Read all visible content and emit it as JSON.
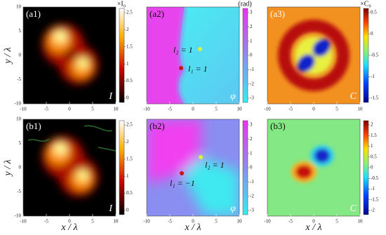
{
  "figure": {
    "axes": {
      "x_label": "x / λ",
      "y_label": "y / λ",
      "x_ticks": [
        -10,
        -5,
        0,
        5,
        10
      ],
      "y_ticks": [
        -10,
        -5,
        0,
        5,
        10
      ]
    },
    "panels": [
      {
        "label": "(a1)",
        "symbol": "I",
        "colorbar": {
          "title": "×I₀",
          "ticks": [
            0,
            0.5,
            1,
            1.5,
            2,
            2.5
          ]
        }
      },
      {
        "label": "(a2)",
        "symbol": "φ",
        "colorbar": {
          "title": "(rad)",
          "ticks": [
            -3,
            -2,
            -1,
            0,
            1,
            2,
            3
          ]
        },
        "annotations": [
          "l₂ = 1",
          "l₁ = 1"
        ]
      },
      {
        "label": "(a3)",
        "symbol": "C",
        "colorbar": {
          "title": "×C₀",
          "ticks": [
            -1.5,
            -1,
            -0.5,
            0,
            0.5
          ]
        }
      },
      {
        "label": "(b1)",
        "symbol": "I",
        "colorbar": {
          "ticks": [
            0,
            0.5,
            1,
            1.5,
            2,
            2.5
          ]
        }
      },
      {
        "label": "(b2)",
        "symbol": "φ",
        "colorbar": {
          "ticks": [
            -3,
            -2,
            -1,
            0,
            1,
            2,
            3
          ]
        },
        "annotations": [
          "l₂ = 1",
          "l₁ = −1"
        ]
      },
      {
        "label": "(b3)",
        "symbol": "C",
        "colorbar": {
          "ticks": [
            -2,
            -1.5,
            -1,
            -0.5,
            0,
            0.5,
            1,
            1.5,
            2
          ]
        }
      }
    ]
  }
}
